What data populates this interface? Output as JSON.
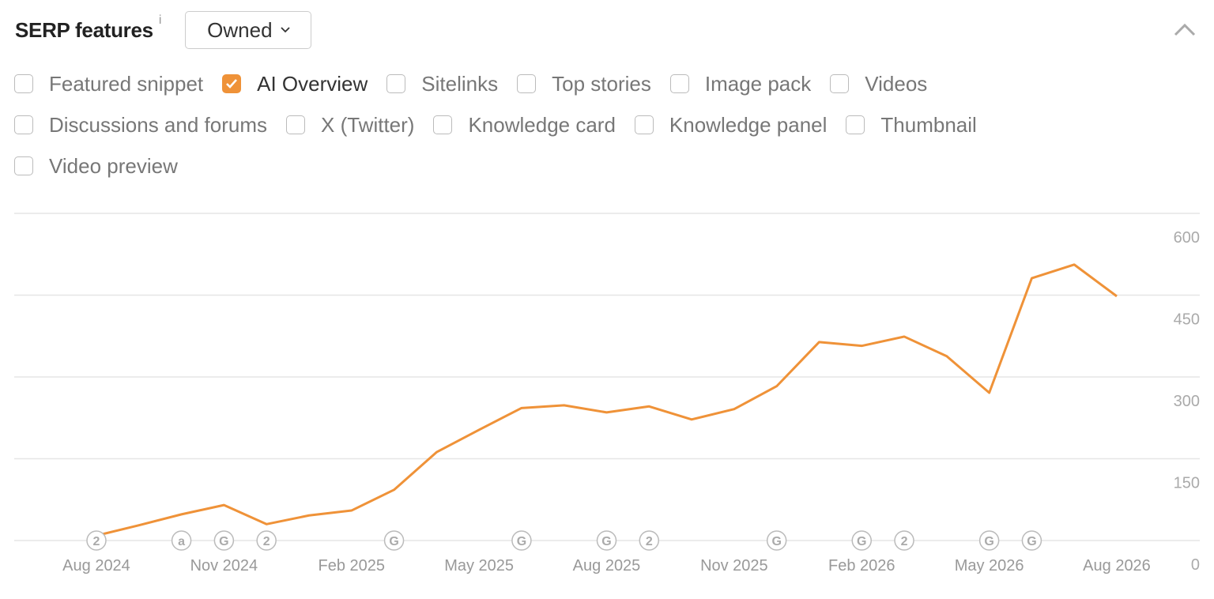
{
  "header": {
    "title": "SERP features",
    "info": "i",
    "dropdown": "Owned"
  },
  "features": [
    {
      "label": "Featured snippet",
      "checked": false
    },
    {
      "label": "AI Overview",
      "checked": true
    },
    {
      "label": "Sitelinks",
      "checked": false
    },
    {
      "label": "Top stories",
      "checked": false
    },
    {
      "label": "Image pack",
      "checked": false
    },
    {
      "label": "Videos",
      "checked": false
    },
    {
      "label": "Discussions and forums",
      "checked": false
    },
    {
      "label": "X (Twitter)",
      "checked": false
    },
    {
      "label": "Knowledge card",
      "checked": false
    },
    {
      "label": "Knowledge panel",
      "checked": false
    },
    {
      "label": "Thumbnail",
      "checked": false
    },
    {
      "label": "Video preview",
      "checked": false
    }
  ],
  "chart_data": {
    "type": "line",
    "color": "#ef9238",
    "categories": [
      "Aug 2024",
      null,
      null,
      "Nov 2024",
      null,
      null,
      "Feb 2025",
      null,
      null,
      "May 2025",
      null,
      null,
      "Aug 2025",
      null,
      null,
      "Nov 2025",
      null,
      null,
      "Feb 2026",
      null,
      null,
      "May 2026",
      null,
      null,
      "Aug 2026"
    ],
    "values": [
      9,
      28,
      48,
      65,
      30,
      46,
      55,
      93,
      162,
      203,
      243,
      248,
      235,
      246,
      222,
      241,
      283,
      364,
      357,
      374,
      338,
      271,
      481,
      506,
      448
    ],
    "markers": [
      "2",
      null,
      "a",
      "G",
      "2",
      null,
      null,
      "G",
      null,
      null,
      "G",
      null,
      "G",
      "2",
      null,
      null,
      "G",
      null,
      "G",
      "2",
      null,
      "G",
      "G",
      null,
      null
    ],
    "ylim": [
      0,
      600
    ],
    "yticks": [
      0,
      150,
      300,
      450,
      600
    ],
    "grid": true
  }
}
